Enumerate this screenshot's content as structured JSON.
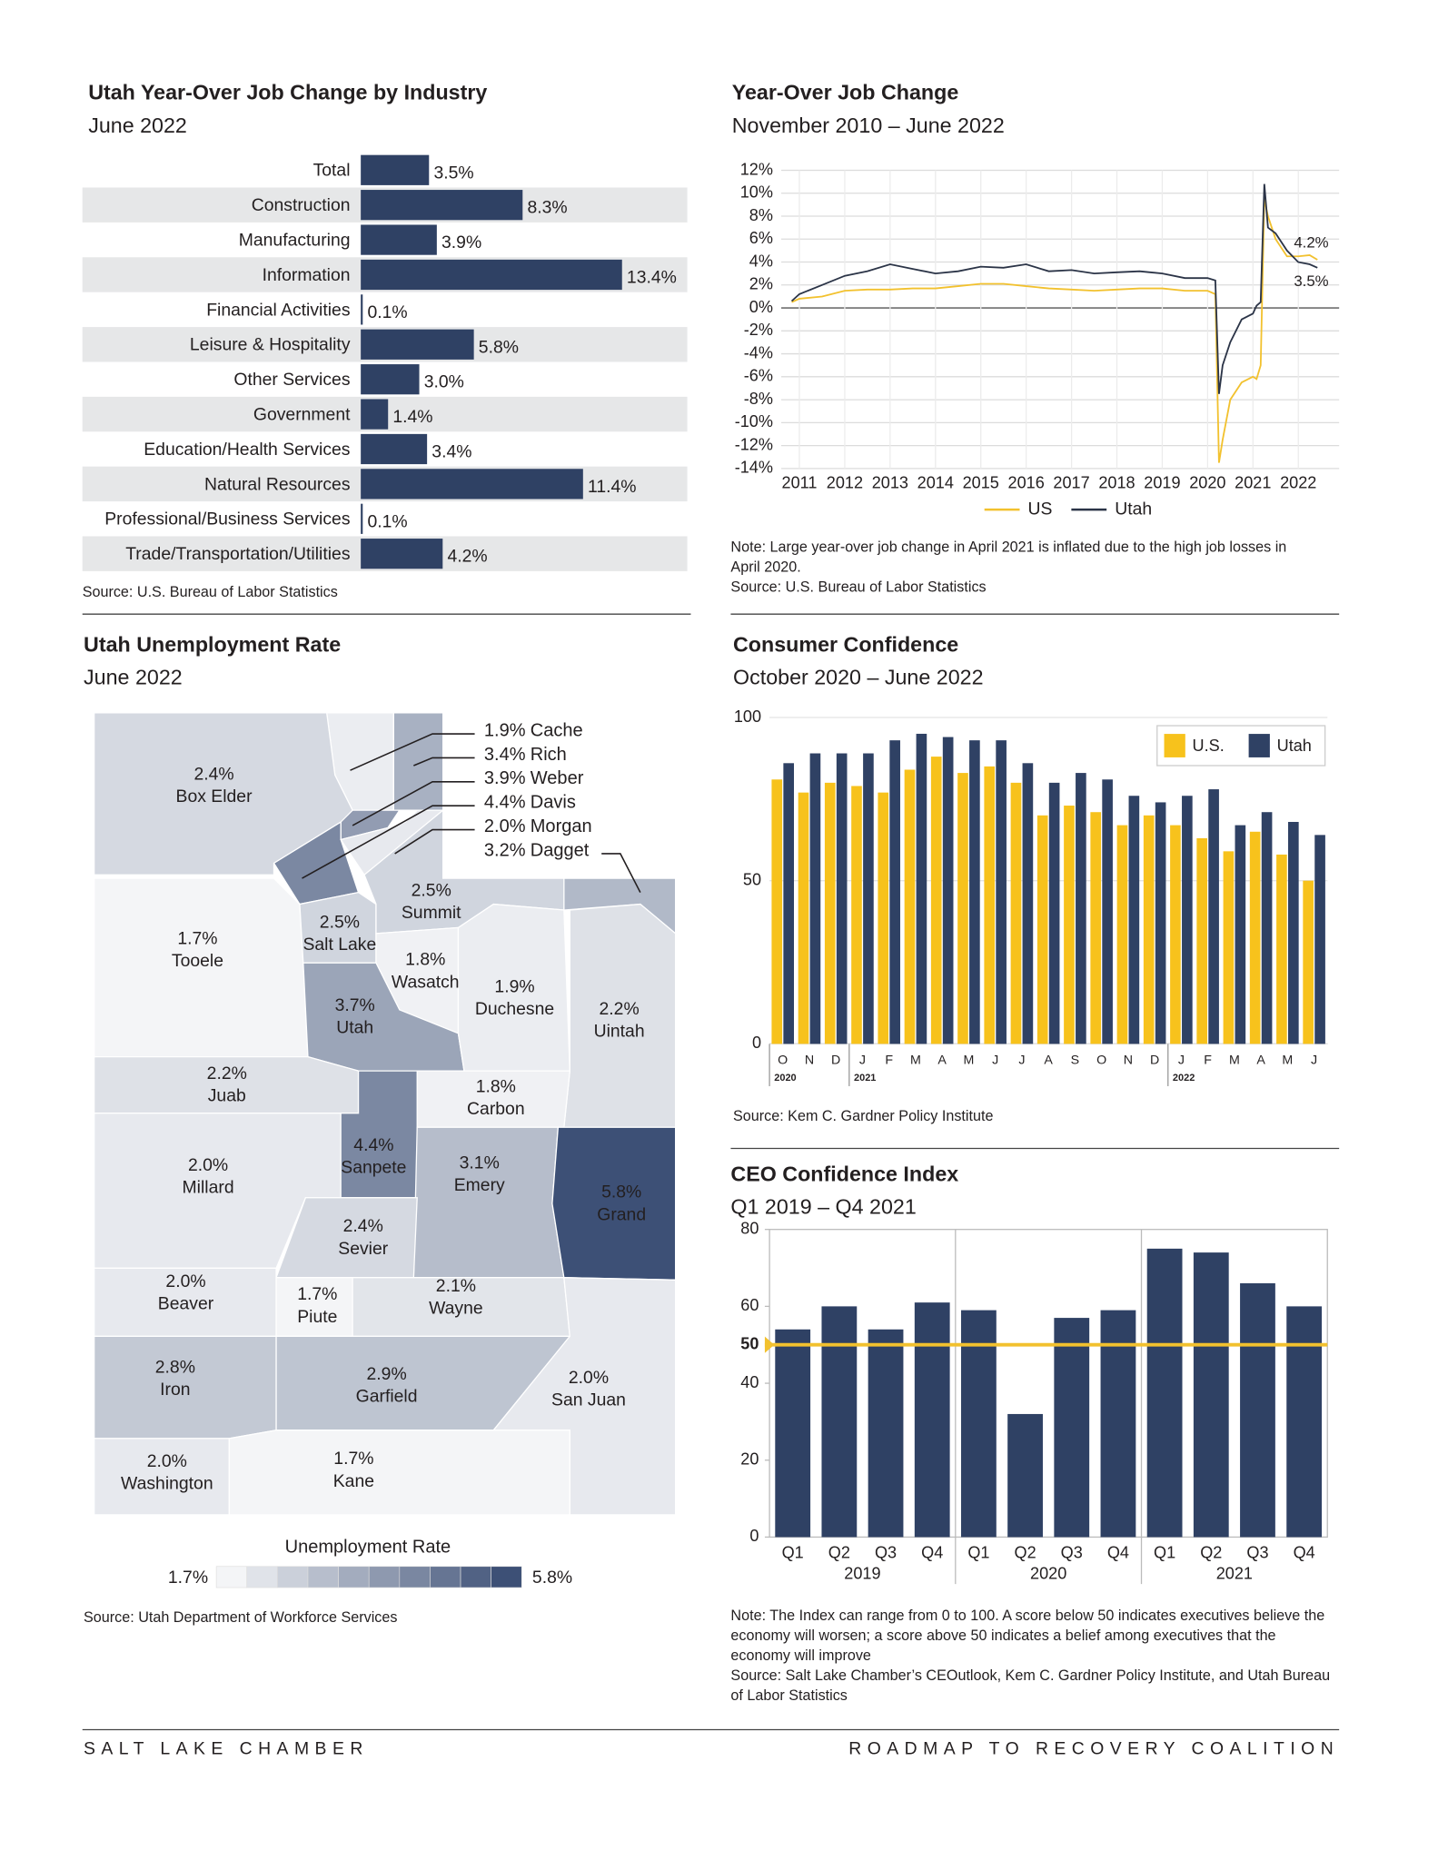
{
  "chart_data": [
    {
      "type": "bar",
      "orientation": "horizontal",
      "title": "Utah Year-Over Job Change by Industry",
      "subtitle": "June 2022",
      "categories": [
        "Total",
        "Construction",
        "Manufacturing",
        "Information",
        "Financial Activities",
        "Leisure & Hospitality",
        "Other Services",
        "Government",
        "Education/Health Services",
        "Natural Resources",
        "Professional/Business Services",
        "Trade/Transportation/Utilities"
      ],
      "values": [
        3.5,
        8.3,
        3.9,
        13.4,
        0.1,
        5.8,
        3.0,
        1.4,
        3.4,
        11.4,
        0.1,
        4.2
      ],
      "value_labels": [
        "3.5%",
        "8.3%",
        "3.9%",
        "13.4%",
        "0.1%",
        "5.8%",
        "3.0%",
        "1.4%",
        "3.4%",
        "11.4%",
        "0.1%",
        "4.2%"
      ],
      "color": "#2f4164",
      "source": "Source: U.S. Bureau of Labor Statistics"
    },
    {
      "type": "line",
      "title": "Year-Over Job Change",
      "subtitle": "November 2010 – June 2022",
      "x": [
        2010.83,
        2011.0,
        2011.5,
        2012.0,
        2012.5,
        2013.0,
        2013.5,
        2014.0,
        2014.5,
        2015.0,
        2015.5,
        2016.0,
        2016.5,
        2017.0,
        2017.5,
        2018.0,
        2018.5,
        2019.0,
        2019.5,
        2020.0,
        2020.17,
        2020.25,
        2020.33,
        2020.5,
        2020.75,
        2021.0,
        2021.08,
        2021.17,
        2021.25,
        2021.33,
        2021.5,
        2021.75,
        2022.0,
        2022.25,
        2022.42
      ],
      "series": [
        {
          "name": "US",
          "color": "#f2c12e",
          "values": [
            0.5,
            0.8,
            1.0,
            1.5,
            1.6,
            1.6,
            1.7,
            1.7,
            1.9,
            2.1,
            2.1,
            1.9,
            1.7,
            1.6,
            1.5,
            1.6,
            1.7,
            1.7,
            1.5,
            1.5,
            1.2,
            -13.5,
            -11.5,
            -8.0,
            -6.5,
            -6.0,
            -6.2,
            -5.0,
            9.5,
            8.0,
            6.0,
            4.5,
            4.5,
            4.6,
            4.2
          ],
          "value_labels": [
            null,
            null,
            null,
            null,
            null,
            null,
            null,
            null,
            null,
            null,
            null,
            null,
            null,
            null,
            null,
            null,
            null,
            null,
            null,
            null,
            null,
            null,
            null,
            null,
            null,
            null,
            null,
            null,
            null,
            null,
            null,
            null,
            null,
            null,
            "4.2%"
          ]
        },
        {
          "name": "Utah",
          "color": "#2b3447",
          "values": [
            0.6,
            1.2,
            2.0,
            2.8,
            3.2,
            3.8,
            3.4,
            3.0,
            3.2,
            3.6,
            3.5,
            3.8,
            3.2,
            3.3,
            3.0,
            3.1,
            3.2,
            3.0,
            2.6,
            2.6,
            2.4,
            -7.5,
            -5.0,
            -3.0,
            -1.0,
            -0.5,
            0.2,
            0.5,
            10.8,
            7.0,
            6.5,
            5.0,
            4.0,
            3.8,
            3.5
          ],
          "value_labels": [
            null,
            null,
            null,
            null,
            null,
            null,
            null,
            null,
            null,
            null,
            null,
            null,
            null,
            null,
            null,
            null,
            null,
            null,
            null,
            null,
            null,
            null,
            null,
            null,
            null,
            null,
            null,
            null,
            null,
            null,
            null,
            null,
            null,
            null,
            "3.5%"
          ]
        }
      ],
      "xlim": [
        2010.6,
        2022.9
      ],
      "xticks": [
        2011,
        2012,
        2013,
        2014,
        2015,
        2016,
        2017,
        2018,
        2019,
        2020,
        2021,
        2022
      ],
      "ylim": [
        -14,
        12
      ],
      "yticks": [
        {
          "value": -14,
          "label": "-14%"
        },
        {
          "value": -12,
          "label": "-12%"
        },
        {
          "value": -10,
          "label": "-10%"
        },
        {
          "value": -8,
          "label": "-8%"
        },
        {
          "value": -6,
          "label": "-6%"
        },
        {
          "value": -4,
          "label": "-4%"
        },
        {
          "value": -2,
          "label": "-2%"
        },
        {
          "value": 0,
          "label": "0%"
        },
        {
          "value": 2,
          "label": "2%"
        },
        {
          "value": 4,
          "label": "4%"
        },
        {
          "value": 6,
          "label": "6%"
        },
        {
          "value": 8,
          "label": "8%"
        },
        {
          "value": 10,
          "label": "10%"
        },
        {
          "value": 12,
          "label": "12%"
        }
      ],
      "grid": true,
      "legend": "bottom",
      "note": "Note: Large year-over job change in April 2021 is inflated due to the high job losses in April 2020.",
      "source": "Source: U.S. Bureau of Labor Statistics"
    },
    {
      "type": "choropleth",
      "title": "Utah Unemployment Rate",
      "subtitle": "June 2022",
      "categories": [
        "Cache",
        "Rich",
        "Weber",
        "Davis",
        "Morgan",
        "Dagget",
        "Box Elder",
        "Tooele",
        "Salt Lake",
        "Summit",
        "Wasatch",
        "Utah",
        "Duchesne",
        "Uintah",
        "Juab",
        "Carbon",
        "Millard",
        "Sanpete",
        "Emery",
        "Grand",
        "Sevier",
        "Beaver",
        "Piute",
        "Wayne",
        "Iron",
        "Garfield",
        "San Juan",
        "Washington",
        "Kane"
      ],
      "values": [
        1.9,
        3.4,
        3.9,
        4.4,
        2.0,
        3.2,
        2.4,
        1.7,
        2.5,
        2.5,
        1.8,
        3.7,
        1.9,
        2.2,
        2.2,
        1.8,
        2.0,
        4.4,
        3.1,
        5.8,
        2.4,
        2.0,
        1.7,
        2.1,
        2.8,
        2.9,
        2.0,
        2.0,
        1.7
      ],
      "value_labels": [
        "1.9%",
        "3.4%",
        "3.9%",
        "4.4%",
        "2.0%",
        "3.2%",
        "2.4%",
        "1.7%",
        "2.5%",
        "2.5%",
        "1.8%",
        "3.7%",
        "1.9%",
        "2.2%",
        "2.2%",
        "1.8%",
        "2.0%",
        "4.4%",
        "3.1%",
        "5.8%",
        "2.4%",
        "2.0%",
        "1.7%",
        "2.1%",
        "2.8%",
        "2.9%",
        "2.0%",
        "2.0%",
        "1.7%"
      ],
      "color_scale": {
        "title": "Unemployment Rate",
        "min": {
          "value": 1.7,
          "label": "1.7%"
        },
        "max": {
          "value": 5.8,
          "label": "5.8%"
        },
        "colors": [
          "#f4f5f7",
          "#3d5076"
        ]
      },
      "source": "Source: Utah Department of Workforce Services"
    },
    {
      "type": "bar",
      "orientation": "vertical",
      "title": "Consumer Confidence",
      "subtitle": "October 2020 – June 2022",
      "categories": [
        "O",
        "N",
        "D",
        "J",
        "F",
        "M",
        "A",
        "M",
        "J",
        "J",
        "A",
        "S",
        "O",
        "N",
        "D",
        "J",
        "F",
        "M",
        "A",
        "M",
        "J"
      ],
      "category_groups": [
        {
          "label": "2020",
          "span": 3
        },
        {
          "label": "2021",
          "span": 12
        },
        {
          "label": "2022",
          "span": 6
        }
      ],
      "series": [
        {
          "name": "U.S.",
          "color": "#f7c21c",
          "values": [
            81,
            77,
            80,
            79,
            77,
            84,
            88,
            83,
            85,
            80,
            70,
            73,
            71,
            67,
            70,
            67,
            63,
            59,
            65,
            58,
            50
          ]
        },
        {
          "name": "Utah",
          "color": "#2f4164",
          "values": [
            86,
            89,
            89,
            89,
            93,
            95,
            94,
            93,
            93,
            86,
            80,
            83,
            81,
            76,
            74,
            76,
            78,
            67,
            71,
            68,
            64
          ]
        }
      ],
      "ylim": [
        0,
        100
      ],
      "yticks": [
        0,
        50,
        100
      ],
      "legend": "upper right",
      "source": "Source: Kem C. Gardner Policy Institute"
    },
    {
      "type": "bar",
      "orientation": "vertical",
      "title": "CEO Confidence Index",
      "subtitle": "Q1 2019 – Q4 2021",
      "categories": [
        "Q1",
        "Q2",
        "Q3",
        "Q4",
        "Q1",
        "Q2",
        "Q3",
        "Q4",
        "Q1",
        "Q2",
        "Q3",
        "Q4"
      ],
      "category_groups": [
        {
          "label": "2019",
          "span": 4
        },
        {
          "label": "2020",
          "span": 4
        },
        {
          "label": "2021",
          "span": 4
        }
      ],
      "values": [
        54,
        60,
        54,
        61,
        59,
        32,
        57,
        59,
        75,
        74,
        66,
        60
      ],
      "color": "#2f4164",
      "ylim": [
        0,
        80
      ],
      "yticks": [
        0,
        20,
        40,
        60,
        80
      ],
      "reference_line": {
        "value": 50,
        "color": "#f2c12e"
      },
      "note": "Note: The Index can range from 0 to 100. A score below 50 indicates executives believe the economy will worsen; a score above 50 indicates a belief among executives that the economy will improve",
      "source": "Source: Salt Lake Chamber’s CEOutlook, Kem C. Gardner Policy Institute, and Utah Bureau of Labor Statistics"
    }
  ],
  "footer": {
    "left": "SALT LAKE CHAMBER",
    "right": "ROADMAP TO RECOVERY COALITION"
  }
}
